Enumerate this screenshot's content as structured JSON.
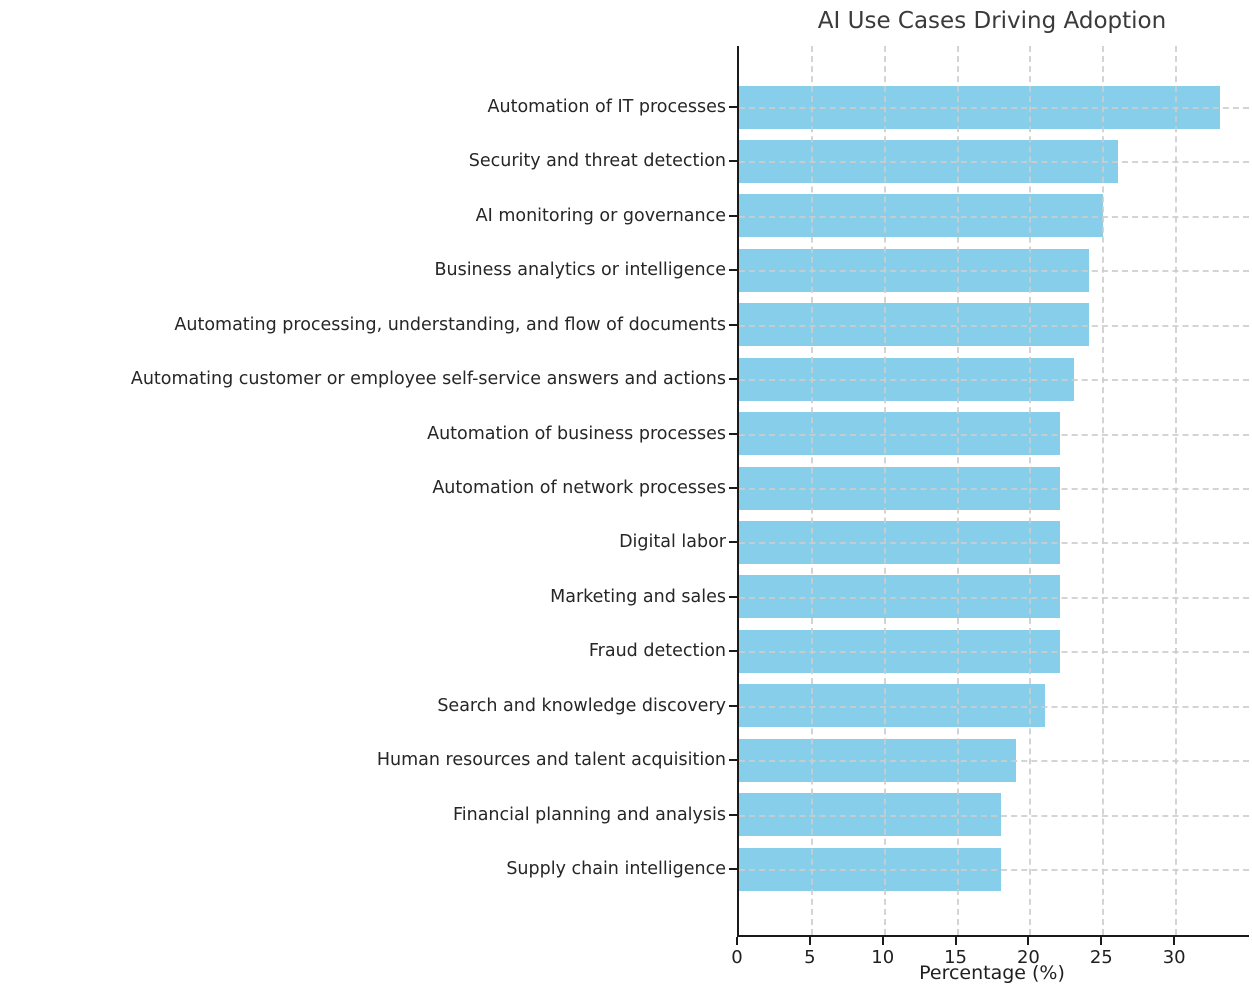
{
  "chart_data": {
    "type": "bar",
    "orientation": "horizontal",
    "title": "AI Use Cases Driving Adoption",
    "xlabel": "Percentage (%)",
    "ylabel": "",
    "categories": [
      "Automation of IT processes",
      "Security and threat detection",
      "AI monitoring or governance",
      "Business analytics or intelligence",
      "Automating processing, understanding, and flow of documents",
      "Automating customer or employee self-service answers and actions",
      "Automation of business processes",
      "Automation of network processes",
      "Digital labor",
      "Marketing and sales",
      "Fraud detection",
      "Search and knowledge discovery",
      "Human resources and talent acquisition",
      "Financial planning and analysis",
      "Supply chain intelligence"
    ],
    "values": [
      33,
      26,
      25,
      24,
      24,
      23,
      22,
      22,
      22,
      22,
      22,
      21,
      19,
      18,
      18
    ],
    "xlim": [
      0,
      35
    ],
    "xticks": [
      0,
      5,
      10,
      15,
      20,
      25,
      30
    ],
    "grid": true,
    "grid_style": "dashed",
    "legend": "none",
    "bar_color": "#87CEEB",
    "background_color": "#FFFFFF",
    "spine_color": "#1A1A1A",
    "grid_color": "#CDCDCD",
    "title_color": "#3A3A3A",
    "label_color": "#262626"
  }
}
